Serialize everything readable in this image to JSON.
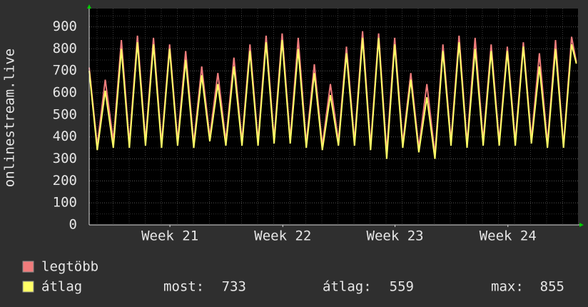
{
  "chart_data": {
    "type": "line",
    "ylabel": "onlinestream.live",
    "x": [
      0,
      0.5,
      1,
      1.5,
      2,
      2.5,
      3,
      3.5,
      4,
      4.5,
      5,
      5.5,
      6,
      6.5,
      7,
      7.5,
      8,
      8.5,
      9,
      9.5,
      10,
      10.5,
      11,
      11.5,
      12,
      12.5,
      13,
      13.5,
      14,
      14.5,
      15,
      15.5,
      16,
      16.5,
      17,
      17.5,
      18,
      18.5,
      19,
      19.5,
      20,
      20.5,
      21,
      21.5,
      22,
      22.5,
      23,
      23.5,
      24,
      24.5,
      25,
      25.5,
      26,
      26.5,
      27,
      27.5,
      28,
      28.5,
      29,
      29.5,
      30,
      30.3
    ],
    "xlim": [
      0,
      30.4
    ],
    "xticks": [
      {
        "value": 5.02,
        "label": "Week 21"
      },
      {
        "value": 12.04,
        "label": "Week 22"
      },
      {
        "value": 19.02,
        "label": "Week 23"
      },
      {
        "value": 26.04,
        "label": "Week 24"
      }
    ],
    "ylim": [
      0,
      983
    ],
    "yticks": [
      0,
      100,
      200,
      300,
      400,
      500,
      600,
      700,
      800,
      900
    ],
    "grid": true,
    "series": [
      {
        "name": "legtöbb",
        "color": "#f07c7c",
        "values": [
          715,
          360,
          660,
          380,
          840,
          370,
          860,
          380,
          850,
          370,
          820,
          380,
          790,
          370,
          720,
          400,
          690,
          380,
          760,
          380,
          820,
          380,
          860,
          390,
          870,
          390,
          850,
          370,
          730,
          360,
          640,
          380,
          810,
          380,
          880,
          360,
          870,
          330,
          850,
          370,
          690,
          350,
          640,
          320,
          820,
          380,
          860,
          370,
          850,
          380,
          820,
          380,
          810,
          380,
          830,
          390,
          780,
          370,
          840,
          360,
          855,
          740
        ]
      },
      {
        "name": "átlag",
        "color": "#ffff66",
        "values": [
          700,
          340,
          610,
          350,
          800,
          350,
          830,
          360,
          820,
          350,
          800,
          360,
          750,
          350,
          680,
          380,
          640,
          360,
          720,
          360,
          790,
          360,
          830,
          370,
          840,
          370,
          800,
          350,
          690,
          340,
          590,
          360,
          780,
          360,
          850,
          340,
          850,
          300,
          820,
          350,
          660,
          330,
          580,
          300,
          790,
          360,
          830,
          350,
          800,
          360,
          790,
          360,
          790,
          360,
          810,
          370,
          720,
          350,
          800,
          350,
          820,
          733
        ]
      }
    ],
    "stats": [
      {
        "label": "most:",
        "value": 733
      },
      {
        "label": "átlag:",
        "value": 559
      },
      {
        "label": "max:",
        "value": 855
      }
    ]
  }
}
